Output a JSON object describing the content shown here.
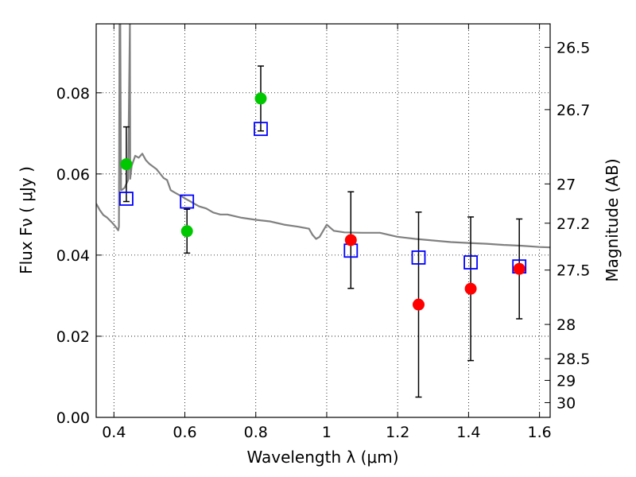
{
  "chart_data": {
    "type": "scatter",
    "title": "",
    "xlabel": "Wavelength  λ (μm)",
    "ylabel": "Flux  Fν  ( μJy )",
    "y2label": "Magnitude (AB)",
    "xlim": [
      0.35,
      1.63
    ],
    "ylim": [
      0.0,
      0.097
    ],
    "grid": true,
    "colors": {
      "template": "#808080",
      "green": "#00c800",
      "red": "#ff0000",
      "model_box": "#0000ff",
      "errorbar": "#000000"
    },
    "x_ticks": [
      {
        "value": 0.4,
        "label": "0.4"
      },
      {
        "value": 0.6,
        "label": "0.6"
      },
      {
        "value": 0.8,
        "label": "0.8"
      },
      {
        "value": 1.0,
        "label": "1"
      },
      {
        "value": 1.2,
        "label": "1.2"
      },
      {
        "value": 1.4,
        "label": "1.4"
      },
      {
        "value": 1.6,
        "label": "1.6"
      }
    ],
    "y_ticks": [
      {
        "value": 0.0,
        "label": "0.00"
      },
      {
        "value": 0.02,
        "label": "0.02"
      },
      {
        "value": 0.04,
        "label": "0.04"
      },
      {
        "value": 0.06,
        "label": "0.06"
      },
      {
        "value": 0.08,
        "label": "0.08"
      }
    ],
    "y2_ticks": [
      {
        "label": "26.5",
        "mag": 26.5
      },
      {
        "label": "26.7",
        "mag": 26.7
      },
      {
        "label": "27",
        "mag": 27.0
      },
      {
        "label": "27.2",
        "mag": 27.2
      },
      {
        "label": "27.5",
        "mag": 27.5
      },
      {
        "label": "28",
        "mag": 28.0
      },
      {
        "label": "28.5",
        "mag": 28.5
      },
      {
        "label": "29",
        "mag": 29.0
      },
      {
        "label": "30",
        "mag": 30.0
      }
    ],
    "series": [
      {
        "marker": "circle",
        "color": "#00c800",
        "points": [
          {
            "x": 0.435,
            "y": 0.0624,
            "yerr": 0.0092
          },
          {
            "x": 0.606,
            "y": 0.0459,
            "yerr": 0.0054
          },
          {
            "x": 0.814,
            "y": 0.0786,
            "yerr": 0.008
          }
        ]
      },
      {
        "marker": "circle",
        "color": "#ff0000",
        "points": [
          {
            "x": 1.068,
            "y": 0.0437,
            "yerr": 0.0119
          },
          {
            "x": 1.259,
            "y": 0.0278,
            "yerr": 0.0228
          },
          {
            "x": 1.406,
            "y": 0.0317,
            "yerr": 0.0177
          },
          {
            "x": 1.543,
            "y": 0.0366,
            "yerr": 0.0123
          }
        ]
      },
      {
        "marker": "square",
        "color": "#0000ff",
        "points": [
          {
            "x": 0.435,
            "y": 0.0539
          },
          {
            "x": 0.606,
            "y": 0.0532
          },
          {
            "x": 0.814,
            "y": 0.0711
          },
          {
            "x": 1.068,
            "y": 0.0411
          },
          {
            "x": 1.259,
            "y": 0.0394
          },
          {
            "x": 1.406,
            "y": 0.0382
          },
          {
            "x": 1.543,
            "y": 0.0372
          }
        ]
      },
      {
        "marker": "line",
        "color": "#808080",
        "points": [
          [
            0.35,
            0.0527
          ],
          [
            0.36,
            0.0511
          ],
          [
            0.37,
            0.0499
          ],
          [
            0.38,
            0.0493
          ],
          [
            0.395,
            0.048
          ],
          [
            0.4,
            0.0475
          ],
          [
            0.408,
            0.0466
          ],
          [
            0.412,
            0.0461
          ],
          [
            0.414,
            0.047
          ],
          [
            0.416,
            0.097
          ],
          [
            0.418,
            0.097
          ],
          [
            0.42,
            0.056
          ],
          [
            0.423,
            0.0561
          ],
          [
            0.43,
            0.0566
          ],
          [
            0.44,
            0.0585
          ],
          [
            0.445,
            0.097
          ],
          [
            0.446,
            0.0588
          ],
          [
            0.45,
            0.062
          ],
          [
            0.455,
            0.0632
          ],
          [
            0.46,
            0.0645
          ],
          [
            0.47,
            0.064
          ],
          [
            0.48,
            0.065
          ],
          [
            0.49,
            0.0634
          ],
          [
            0.5,
            0.0625
          ],
          [
            0.52,
            0.0612
          ],
          [
            0.54,
            0.059
          ],
          [
            0.55,
            0.0585
          ],
          [
            0.56,
            0.056
          ],
          [
            0.57,
            0.0555
          ],
          [
            0.58,
            0.055
          ],
          [
            0.6,
            0.054
          ],
          [
            0.62,
            0.053
          ],
          [
            0.64,
            0.052
          ],
          [
            0.66,
            0.0515
          ],
          [
            0.68,
            0.0505
          ],
          [
            0.7,
            0.05
          ],
          [
            0.72,
            0.05
          ],
          [
            0.76,
            0.0492
          ],
          [
            0.8,
            0.0487
          ],
          [
            0.84,
            0.0483
          ],
          [
            0.88,
            0.0475
          ],
          [
            0.92,
            0.047
          ],
          [
            0.95,
            0.0465
          ],
          [
            0.96,
            0.045
          ],
          [
            0.97,
            0.044
          ],
          [
            0.98,
            0.0445
          ],
          [
            1.0,
            0.0475
          ],
          [
            1.02,
            0.046
          ],
          [
            1.05,
            0.0456
          ],
          [
            1.1,
            0.0455
          ],
          [
            1.15,
            0.0455
          ],
          [
            1.2,
            0.0445
          ],
          [
            1.25,
            0.044
          ],
          [
            1.3,
            0.0436
          ],
          [
            1.35,
            0.0432
          ],
          [
            1.4,
            0.043
          ],
          [
            1.45,
            0.0428
          ],
          [
            1.5,
            0.0425
          ],
          [
            1.55,
            0.0423
          ],
          [
            1.6,
            0.042
          ],
          [
            1.63,
            0.0419
          ]
        ]
      }
    ]
  }
}
